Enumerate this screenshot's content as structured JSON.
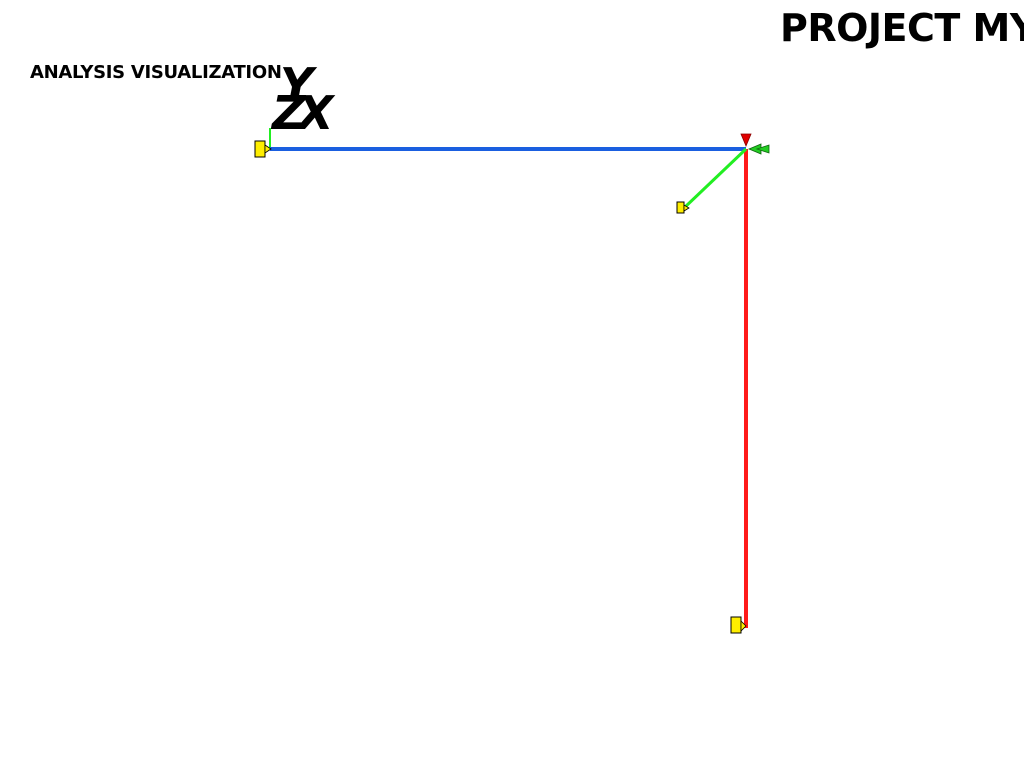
{
  "header": {
    "project_title": "PROJECT MY",
    "view_label": "ANALYSIS VISUALIZATION"
  },
  "orientation_triad": {
    "labels": [
      "Y",
      "Z",
      "X"
    ]
  },
  "colors": {
    "background": "#ffffff",
    "x_axis_member": "#ff1a1a",
    "y_axis_member": "#22ee22",
    "z_axis_member": "#1a5fe0",
    "support_marker": "#ffee00",
    "arrow_red": "#e00000",
    "arrow_green": "#22cc22",
    "text": "#000000"
  },
  "icons": {
    "support_marker": "support-marker-icon",
    "load_arrow": "arrow-icon"
  }
}
